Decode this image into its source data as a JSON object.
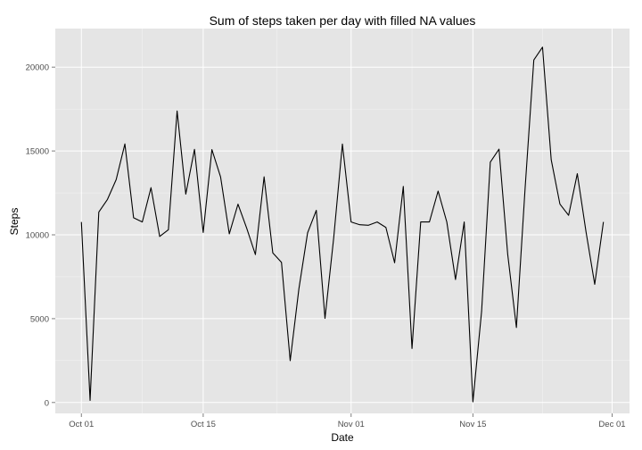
{
  "chart_data": {
    "type": "line",
    "title": "Sum of steps taken per day with filled NA values",
    "xlabel": "Date",
    "ylabel": "Steps",
    "x_tick_labels": [
      "Oct 01",
      "Oct 15",
      "Nov 01",
      "Nov 15",
      "Dec 01"
    ],
    "x_tick_dates": [
      "2012-10-01",
      "2012-10-15",
      "2012-11-01",
      "2012-11-15",
      "2012-12-01"
    ],
    "y_ticks": [
      0,
      5000,
      10000,
      15000,
      20000
    ],
    "xlim": [
      "2012-09-28",
      "2012-12-03"
    ],
    "ylim": [
      -650,
      22300
    ],
    "grid": true,
    "background": "#E5E5E5",
    "grid_color": "#FFFFFF",
    "line_color": "#000000",
    "x": [
      "2012-10-01",
      "2012-10-02",
      "2012-10-03",
      "2012-10-04",
      "2012-10-05",
      "2012-10-06",
      "2012-10-07",
      "2012-10-08",
      "2012-10-09",
      "2012-10-10",
      "2012-10-11",
      "2012-10-12",
      "2012-10-13",
      "2012-10-14",
      "2012-10-15",
      "2012-10-16",
      "2012-10-17",
      "2012-10-18",
      "2012-10-19",
      "2012-10-20",
      "2012-10-21",
      "2012-10-22",
      "2012-10-23",
      "2012-10-24",
      "2012-10-25",
      "2012-10-26",
      "2012-10-27",
      "2012-10-28",
      "2012-10-29",
      "2012-10-30",
      "2012-10-31",
      "2012-11-01",
      "2012-11-02",
      "2012-11-03",
      "2012-11-04",
      "2012-11-05",
      "2012-11-06",
      "2012-11-07",
      "2012-11-08",
      "2012-11-09",
      "2012-11-10",
      "2012-11-11",
      "2012-11-12",
      "2012-11-13",
      "2012-11-14",
      "2012-11-15",
      "2012-11-16",
      "2012-11-17",
      "2012-11-18",
      "2012-11-19",
      "2012-11-20",
      "2012-11-21",
      "2012-11-22",
      "2012-11-23",
      "2012-11-24",
      "2012-11-25",
      "2012-11-26",
      "2012-11-27",
      "2012-11-28",
      "2012-11-29",
      "2012-11-30"
    ],
    "values": [
      10766,
      126,
      11352,
      12116,
      13294,
      15420,
      11015,
      10766,
      12811,
      9900,
      10304,
      17382,
      12426,
      15098,
      10139,
      15084,
      13452,
      10056,
      11829,
      10395,
      8821,
      13460,
      8918,
      8355,
      2492,
      6778,
      10119,
      11458,
      5018,
      9819,
      15414,
      10766,
      10600,
      10571,
      10766,
      10439,
      8334,
      12883,
      3219,
      10766,
      10766,
      12608,
      10765,
      7336,
      10766,
      41,
      5441,
      14339,
      15110,
      8841,
      4472,
      12787,
      20427,
      21194,
      14478,
      11834,
      11162,
      13646,
      10183,
      7047,
      10766
    ]
  }
}
